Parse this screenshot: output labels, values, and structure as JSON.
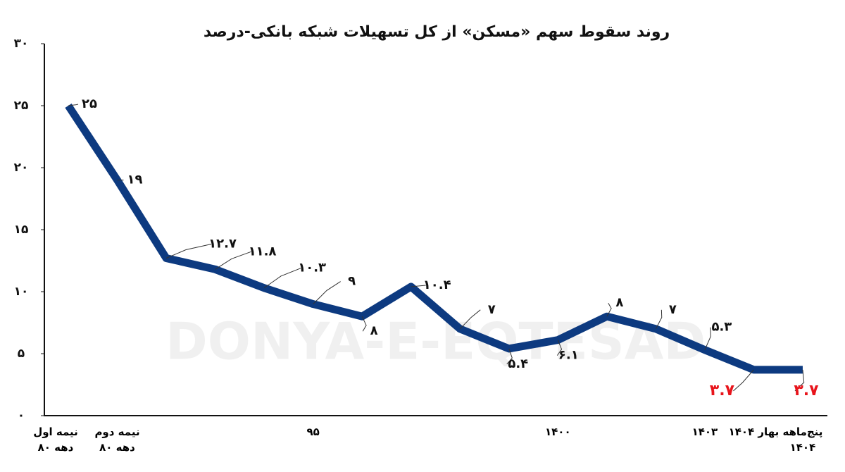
{
  "chart_data": {
    "type": "line",
    "title": "روند سقوط سهم «مسکن» از کل تسهیلات شبکه بانکی-درصد",
    "watermark": "DONYA-E-EQTESAD",
    "categories": [
      "نیمه اول\nدهه ۸۰",
      "نیمه دوم\nدهه ۸۰",
      null,
      null,
      null,
      "۹۵",
      null,
      null,
      null,
      null,
      "۱۴۰۰",
      null,
      null,
      "۱۴۰۳",
      "بهار ۱۴۰۴",
      "پنج‌ماهه\n۱۴۰۴"
    ],
    "series": [
      {
        "name": "مسکن",
        "color": "#0d3a80",
        "values": [
          25,
          19,
          12.7,
          11.8,
          10.3,
          9,
          8,
          10.4,
          7,
          5.4,
          6.1,
          8,
          7,
          5.3,
          3.7,
          3.7
        ],
        "value_labels": [
          "۲۵",
          "۱۹",
          "۱۲.۷",
          "۱۱.۸",
          "۱۰.۳",
          "۹",
          "۸",
          "۱۰.۴",
          "۷",
          "۵.۴",
          "۶.۱",
          "۸",
          "۷",
          "۵.۳",
          "۳.۷",
          "۳.۷"
        ],
        "value_label_colors": [
          "#111",
          "#111",
          "#111",
          "#111",
          "#111",
          "#111",
          "#111",
          "#111",
          "#111",
          "#111",
          "#111",
          "#111",
          "#111",
          "#111",
          "#e8141b",
          "#e8141b"
        ]
      }
    ],
    "ylim": [
      0,
      30
    ],
    "yticks": [
      {
        "value": 0,
        "label": "۰"
      },
      {
        "value": 5,
        "label": "۵"
      },
      {
        "value": 10,
        "label": "۱۰"
      },
      {
        "value": 15,
        "label": "۱۵"
      },
      {
        "value": 20,
        "label": "۲۰"
      },
      {
        "value": 25,
        "label": "۲۵"
      },
      {
        "value": 30,
        "label": "۳۰"
      }
    ],
    "grid": false
  }
}
